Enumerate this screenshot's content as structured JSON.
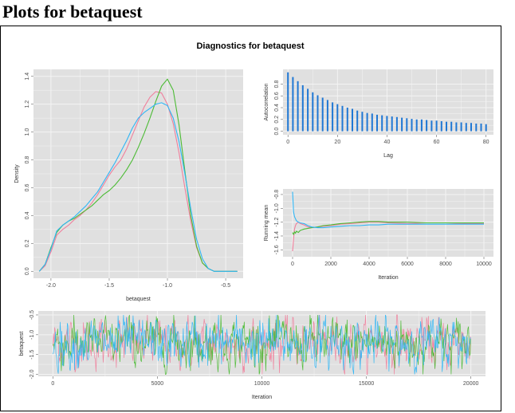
{
  "page": {
    "heading": "Plots for betaquest"
  },
  "figure": {
    "title": "Diagnostics for betaquest"
  },
  "colors": {
    "panel_bg": "#e0e0e0",
    "grid": "#f4f4f4",
    "chain1": "#f07f9c",
    "chain2": "#4cbb35",
    "chain3": "#2fb6f5",
    "acf_bar": "#1f77d4"
  },
  "chart_data": [
    {
      "id": "density",
      "type": "line",
      "xlabel": "betaquest",
      "ylabel": "Density",
      "xlim": [
        -2.15,
        -0.35
      ],
      "ylim": [
        -0.05,
        1.45
      ],
      "xticks": [
        -2.0,
        -1.5,
        -1.0,
        -0.5
      ],
      "xtick_labels": [
        "-2.0",
        "-1.5",
        "-1.0",
        "-0.5"
      ],
      "yticks": [
        0.0,
        0.2,
        0.4,
        0.6,
        0.8,
        1.0,
        1.2,
        1.4
      ],
      "ytick_labels": [
        "0.0",
        "0.2",
        "0.4",
        "0.6",
        "0.8",
        "1.0",
        "1.2",
        "1.4"
      ],
      "series": [
        {
          "x": [
            -2.1,
            -2.05,
            -2.0,
            -1.95,
            -1.9,
            -1.85,
            -1.8,
            -1.75,
            -1.7,
            -1.65,
            -1.6,
            -1.55,
            -1.5,
            -1.45,
            -1.4,
            -1.35,
            -1.3,
            -1.25,
            -1.2,
            -1.15,
            -1.1,
            -1.05,
            -1.0,
            -0.95,
            -0.9,
            -0.85,
            -0.8,
            -0.75,
            -0.7,
            -0.65,
            -0.6,
            -0.55,
            -0.5,
            -0.45,
            -0.4
          ],
          "y": [
            0.0,
            0.04,
            0.14,
            0.26,
            0.3,
            0.33,
            0.37,
            0.4,
            0.44,
            0.49,
            0.55,
            0.62,
            0.69,
            0.75,
            0.8,
            0.88,
            0.98,
            1.08,
            1.18,
            1.25,
            1.29,
            1.28,
            1.2,
            1.06,
            0.85,
            0.6,
            0.36,
            0.17,
            0.06,
            0.02,
            0.0,
            0.0,
            0.0,
            0.0,
            0.0
          ]
        },
        {
          "x": [
            -2.1,
            -2.05,
            -2.0,
            -1.95,
            -1.9,
            -1.85,
            -1.8,
            -1.75,
            -1.7,
            -1.65,
            -1.6,
            -1.55,
            -1.5,
            -1.45,
            -1.4,
            -1.35,
            -1.3,
            -1.25,
            -1.2,
            -1.15,
            -1.1,
            -1.05,
            -1.0,
            -0.95,
            -0.9,
            -0.85,
            -0.8,
            -0.75,
            -0.7,
            -0.65,
            -0.6,
            -0.55,
            -0.5,
            -0.45,
            -0.4
          ],
          "y": [
            0.0,
            0.05,
            0.17,
            0.28,
            0.33,
            0.36,
            0.38,
            0.41,
            0.44,
            0.47,
            0.51,
            0.55,
            0.58,
            0.62,
            0.67,
            0.73,
            0.8,
            0.89,
            0.99,
            1.1,
            1.22,
            1.33,
            1.38,
            1.3,
            1.05,
            0.72,
            0.4,
            0.18,
            0.06,
            0.02,
            0.0,
            0.0,
            0.0,
            0.0,
            0.0
          ]
        },
        {
          "x": [
            -2.1,
            -2.05,
            -2.0,
            -1.95,
            -1.9,
            -1.85,
            -1.8,
            -1.75,
            -1.7,
            -1.65,
            -1.6,
            -1.55,
            -1.5,
            -1.45,
            -1.4,
            -1.35,
            -1.3,
            -1.25,
            -1.2,
            -1.15,
            -1.1,
            -1.05,
            -1.0,
            -0.95,
            -0.9,
            -0.85,
            -0.8,
            -0.75,
            -0.7,
            -0.65,
            -0.6,
            -0.55,
            -0.5,
            -0.45,
            -0.4
          ],
          "y": [
            0.0,
            0.05,
            0.16,
            0.29,
            0.33,
            0.36,
            0.39,
            0.43,
            0.47,
            0.52,
            0.57,
            0.64,
            0.71,
            0.78,
            0.86,
            0.94,
            1.03,
            1.1,
            1.14,
            1.17,
            1.2,
            1.21,
            1.19,
            1.1,
            0.93,
            0.7,
            0.45,
            0.23,
            0.09,
            0.02,
            0.0,
            0.0,
            0.0,
            0.0,
            0.0
          ]
        }
      ]
    },
    {
      "id": "autocorrelation",
      "type": "bar",
      "xlabel": "Lag",
      "ylabel": "Autocorrelation",
      "xlim": [
        -2,
        83
      ],
      "ylim": [
        -0.06,
        1.05
      ],
      "xticks": [
        0,
        20,
        40,
        60,
        80
      ],
      "xtick_labels": [
        "0",
        "20",
        "40",
        "60",
        "80"
      ],
      "yticks": [
        0.0,
        0.2,
        0.4,
        0.6,
        0.8
      ],
      "ytick_labels": [
        "0.0",
        "0.2",
        "0.4",
        "0.6",
        "0.8"
      ],
      "lags": [
        0,
        2,
        4,
        6,
        8,
        10,
        12,
        14,
        16,
        18,
        20,
        22,
        24,
        26,
        28,
        30,
        32,
        34,
        36,
        38,
        40,
        42,
        44,
        46,
        48,
        50,
        52,
        54,
        56,
        58,
        60,
        62,
        64,
        66,
        68,
        70,
        72,
        74,
        76,
        78,
        80
      ],
      "values": [
        1.0,
        0.92,
        0.85,
        0.78,
        0.72,
        0.66,
        0.61,
        0.57,
        0.53,
        0.49,
        0.46,
        0.43,
        0.4,
        0.38,
        0.35,
        0.33,
        0.31,
        0.3,
        0.28,
        0.27,
        0.26,
        0.25,
        0.24,
        0.23,
        0.22,
        0.21,
        0.2,
        0.2,
        0.19,
        0.18,
        0.18,
        0.17,
        0.16,
        0.16,
        0.15,
        0.15,
        0.14,
        0.14,
        0.13,
        0.13,
        0.12
      ]
    },
    {
      "id": "running-mean",
      "type": "line",
      "xlabel": "Iteration",
      "ylabel": "Running mean",
      "xlim": [
        -500,
        10500
      ],
      "ylim": [
        -1.7,
        -0.72
      ],
      "xticks": [
        0,
        2000,
        4000,
        6000,
        8000,
        10000
      ],
      "xtick_labels": [
        "0",
        "2000",
        "4000",
        "6000",
        "8000",
        "10000"
      ],
      "yticks": [
        -1.6,
        -1.4,
        -1.2,
        -1.0,
        -0.8
      ],
      "ytick_labels": [
        "-1.6",
        "-1.4",
        "-1.2",
        "-1.0",
        "-0.8"
      ],
      "series": [
        {
          "x": [
            0,
            50,
            100,
            150,
            200,
            300,
            400,
            600,
            800,
            1000,
            1300,
            1600,
            2000,
            2500,
            3000,
            3500,
            4000,
            4500,
            5000,
            6000,
            7000,
            8000,
            9000,
            10000
          ],
          "y": [
            -1.62,
            -1.45,
            -1.3,
            -1.25,
            -1.22,
            -1.2,
            -1.22,
            -1.24,
            -1.27,
            -1.28,
            -1.27,
            -1.26,
            -1.25,
            -1.23,
            -1.22,
            -1.21,
            -1.2,
            -1.2,
            -1.21,
            -1.22,
            -1.21,
            -1.21,
            -1.22,
            -1.22
          ]
        },
        {
          "x": [
            0,
            50,
            100,
            150,
            200,
            300,
            400,
            600,
            800,
            1000,
            1300,
            1600,
            2000,
            2500,
            3000,
            3500,
            4000,
            4500,
            5000,
            6000,
            7000,
            8000,
            9000,
            10000
          ],
          "y": [
            -1.35,
            -1.38,
            -1.34,
            -1.36,
            -1.33,
            -1.35,
            -1.32,
            -1.3,
            -1.29,
            -1.28,
            -1.27,
            -1.25,
            -1.24,
            -1.22,
            -1.21,
            -1.2,
            -1.19,
            -1.19,
            -1.2,
            -1.2,
            -1.21,
            -1.21,
            -1.21,
            -1.21
          ]
        },
        {
          "x": [
            0,
            50,
            100,
            150,
            200,
            300,
            400,
            600,
            800,
            1000,
            1300,
            1600,
            2000,
            2500,
            3000,
            3500,
            4000,
            4500,
            5000,
            6000,
            7000,
            8000,
            9000,
            10000
          ],
          "y": [
            -0.76,
            -1.05,
            -1.12,
            -1.15,
            -1.18,
            -1.2,
            -1.21,
            -1.22,
            -1.25,
            -1.27,
            -1.28,
            -1.28,
            -1.27,
            -1.26,
            -1.25,
            -1.25,
            -1.24,
            -1.24,
            -1.23,
            -1.23,
            -1.23,
            -1.23,
            -1.23,
            -1.23
          ]
        }
      ]
    },
    {
      "id": "trace",
      "type": "line",
      "xlabel": "Iteration",
      "ylabel": "betaquest",
      "xlim": [
        -700,
        20700
      ],
      "ylim": [
        -2.05,
        -0.4
      ],
      "xticks": [
        0,
        5000,
        10000,
        15000,
        20000
      ],
      "xtick_labels": [
        "0",
        "5000",
        "10000",
        "15000",
        "20000"
      ],
      "yticks": [
        -2.0,
        -1.5,
        -1.0,
        -0.5
      ],
      "ytick_labels": [
        "-2.0",
        "-1.5",
        "-1.0",
        "-0.5"
      ],
      "n_iterations": 20000,
      "chain_mean": -1.2,
      "chain_sd": 0.28,
      "value_range": [
        -2.0,
        -0.5
      ]
    }
  ]
}
